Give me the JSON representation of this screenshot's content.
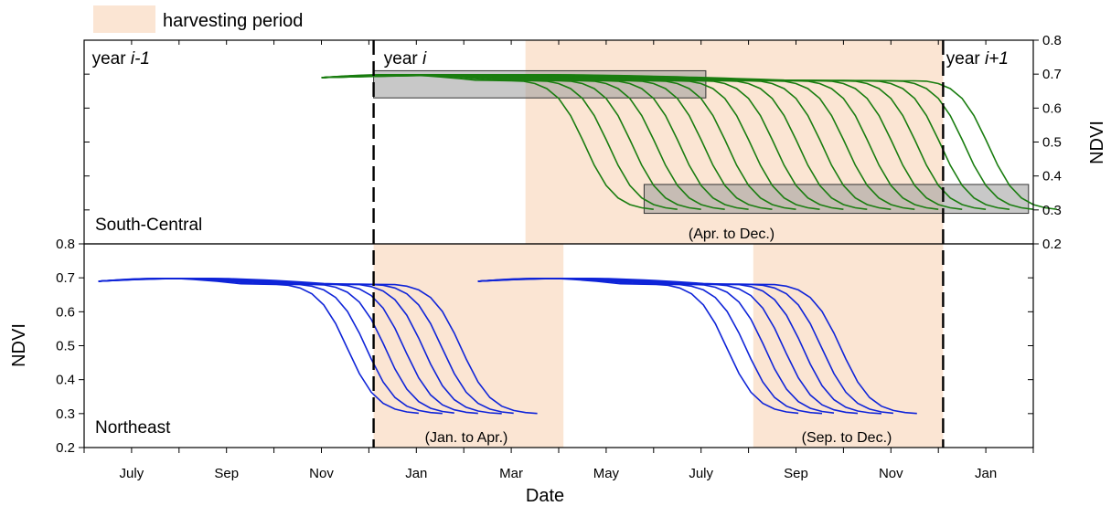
{
  "legend": {
    "label": "harvesting period",
    "swatch_color": "#fbe5d3"
  },
  "xaxis": {
    "title": "Date",
    "range_months": [
      0,
      20
    ],
    "tick_labels": [
      {
        "m": 1,
        "label": "July"
      },
      {
        "m": 3,
        "label": "Sep"
      },
      {
        "m": 5,
        "label": "Nov"
      },
      {
        "m": 7,
        "label": "Jan"
      },
      {
        "m": 9,
        "label": "Mar"
      },
      {
        "m": 11,
        "label": "May"
      },
      {
        "m": 13,
        "label": "July"
      },
      {
        "m": 15,
        "label": "Sep"
      },
      {
        "m": 17,
        "label": "Nov"
      },
      {
        "m": 19,
        "label": "Jan"
      }
    ]
  },
  "year_labels": [
    {
      "prefix": "year ",
      "var": "i-1",
      "m": 0.05
    },
    {
      "prefix": "year ",
      "var": "i",
      "m": 6.2
    },
    {
      "prefix": "year ",
      "var": "i+1",
      "m": 18.05
    }
  ],
  "year_boundaries_m": [
    6.1,
    18.1
  ],
  "chart_data": [
    {
      "type": "line",
      "panel": "South-Central",
      "ylabel": "NDVI",
      "ylim": [
        0.2,
        0.8
      ],
      "yticks": [
        "0.2",
        "0.3",
        "0.4",
        "0.5",
        "0.6",
        "0.7",
        "0.8"
      ],
      "yaxis_side": "right",
      "color": "#1a7d10",
      "harvest_band_m": [
        9.3,
        18.1
      ],
      "annotation": "(Apr. to Dec.)",
      "highlight_boxes": [
        {
          "m0": 6.1,
          "m1": 13.1,
          "ndvi0": 0.63,
          "ndvi1": 0.71
        },
        {
          "m0": 11.8,
          "m1": 19.9,
          "ndvi0": 0.29,
          "ndvi1": 0.375
        }
      ],
      "curve_start_m": 5.0,
      "curve_start_ndvi": 0.69,
      "curve_end_ndvi": 0.3,
      "curve_drop_start_m": [
        9.2,
        9.7,
        10.2,
        10.7,
        11.2,
        11.7,
        12.2,
        12.7,
        13.2,
        13.7,
        14.2,
        14.7,
        15.2,
        15.7,
        16.2,
        16.7,
        17.2,
        17.7
      ]
    },
    {
      "type": "line",
      "panel": "Northeast",
      "ylabel": "NDVI",
      "ylim": [
        0.2,
        0.8
      ],
      "yticks": [
        "0.2",
        "0.3",
        "0.4",
        "0.5",
        "0.6",
        "0.7",
        "0.8"
      ],
      "yaxis_side": "left",
      "color": "#0f24d8",
      "harvest_bands_m": [
        [
          6.1,
          10.1
        ],
        [
          14.1,
          18.1
        ]
      ],
      "annotations": [
        "(Jan. to Apr.)",
        "(Sep. to Dec.)"
      ],
      "groups": [
        {
          "curve_start_m": 0.3,
          "curve_start_ndvi": 0.69,
          "curve_end_ndvi": 0.3,
          "curve_drop_start_m": [
            4.2,
            4.6,
            5.0,
            5.4,
            5.8,
            6.2,
            6.6
          ]
        },
        {
          "curve_start_m": 8.3,
          "curve_start_ndvi": 0.69,
          "curve_end_ndvi": 0.3,
          "curve_drop_start_m": [
            12.2,
            12.6,
            13.0,
            13.4,
            13.8,
            14.2,
            14.6
          ]
        }
      ]
    }
  ]
}
